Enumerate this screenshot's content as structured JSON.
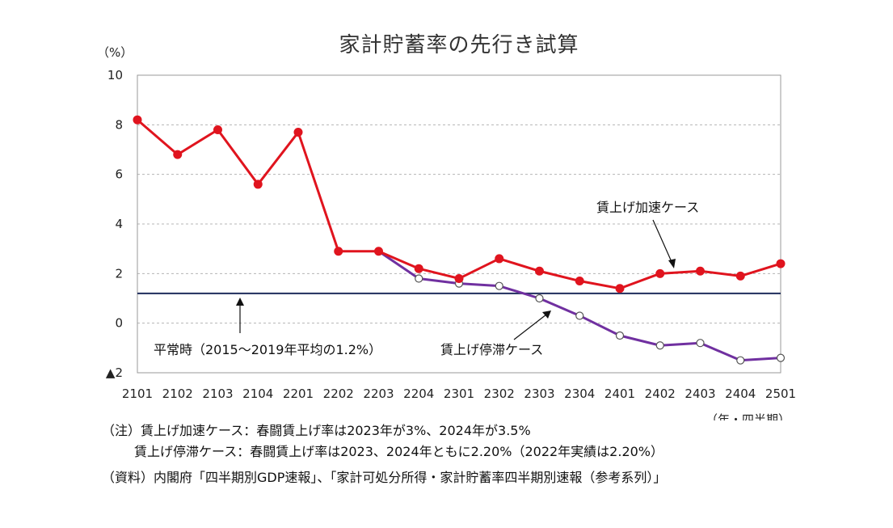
{
  "chart_data": {
    "type": "line",
    "title": "家計貯蓄率の先行き試算",
    "ylabel": "（%）",
    "xlabel": "（年・四半期）",
    "ylim": [
      -2,
      10
    ],
    "yticks": [
      {
        "value": 10,
        "label": "10"
      },
      {
        "value": 8,
        "label": "8"
      },
      {
        "value": 6,
        "label": "6"
      },
      {
        "value": 4,
        "label": "4"
      },
      {
        "value": 2,
        "label": "2"
      },
      {
        "value": 0,
        "label": "0"
      },
      {
        "value": -2,
        "label": "▲2"
      }
    ],
    "grid": true,
    "categories": [
      "2101",
      "2102",
      "2103",
      "2104",
      "2201",
      "2202",
      "2203",
      "2204",
      "2301",
      "2302",
      "2303",
      "2304",
      "2401",
      "2402",
      "2403",
      "2404",
      "2501"
    ],
    "series": [
      {
        "name": "賃上げ加速ケース",
        "color": "#e0141e",
        "marker": "filled",
        "values": [
          8.2,
          6.8,
          7.8,
          5.6,
          7.7,
          2.9,
          2.9,
          2.2,
          1.8,
          2.6,
          2.1,
          1.7,
          1.4,
          2.0,
          2.1,
          1.9,
          2.4
        ]
      },
      {
        "name": "賃上げ停滞ケース",
        "color": "#7030a0",
        "marker": "hollow",
        "values": [
          null,
          null,
          null,
          null,
          null,
          null,
          2.9,
          1.8,
          1.6,
          1.5,
          1.0,
          0.3,
          -0.5,
          -0.9,
          -0.8,
          -1.5,
          -1.4
        ]
      }
    ],
    "reference_line": {
      "label": "平常時（2015～2019年平均の1.2%）",
      "value": 1.2,
      "color": "#1f2d5c"
    },
    "annotations": {
      "accel_label": "賃上げ加速ケース",
      "stag_label": "賃上げ停滞ケース",
      "baseline_label": "平常時（2015～2019年平均の1.2%）"
    }
  },
  "notes": {
    "line1": "（注）賃上げ加速ケース：春闘賃上げ率は2023年が3%、2024年が3.5%",
    "line2": "賃上げ停滞ケース：春闘賃上げ率は2023、2024年ともに2.20%（2022年実績は2.20%）",
    "source": "（資料）内閣府「四半期別GDP速報」、「家計可処分所得・家計貯蓄率四半期別速報（参考系列）」"
  }
}
